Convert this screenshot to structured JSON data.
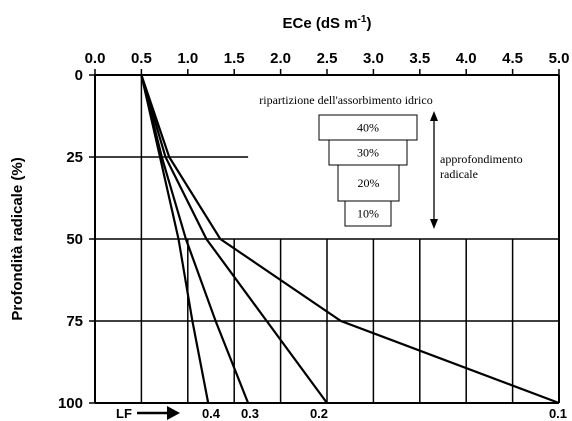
{
  "chart_data": {
    "type": "line",
    "title": "",
    "xlabel_base": "ECe (dS m",
    "xlabel_sup": "-1",
    "xlabel_close": ")",
    "ylabel": "Profondità radicale (%)",
    "xlim": [
      0,
      5
    ],
    "ylim": [
      0,
      100
    ],
    "y_inverted": true,
    "x_axis_position": "top",
    "x_ticks": [
      "0.0",
      "0.5",
      "1.0",
      "1.5",
      "2.0",
      "2.5",
      "3.0",
      "3.5",
      "4.0",
      "4.5",
      "5.0"
    ],
    "y_ticks": [
      "0",
      "25",
      "50",
      "75",
      "100"
    ],
    "series": [
      {
        "name": "0.4",
        "points": [
          [
            0.5,
            0
          ],
          [
            0.7,
            25
          ],
          [
            0.9,
            50
          ],
          [
            1.05,
            75
          ],
          [
            1.22,
            100
          ]
        ]
      },
      {
        "name": "0.3",
        "points": [
          [
            0.5,
            0
          ],
          [
            0.72,
            25
          ],
          [
            0.98,
            50
          ],
          [
            1.3,
            75
          ],
          [
            1.65,
            100
          ]
        ]
      },
      {
        "name": "0.2",
        "points": [
          [
            0.5,
            0
          ],
          [
            0.76,
            25
          ],
          [
            1.2,
            50
          ],
          [
            1.85,
            75
          ],
          [
            2.5,
            100
          ]
        ]
      },
      {
        "name": "0.1",
        "points": [
          [
            0.5,
            0
          ],
          [
            0.8,
            25
          ],
          [
            1.35,
            50
          ],
          [
            2.65,
            75
          ],
          [
            5.0,
            100
          ]
        ]
      }
    ],
    "lf_label": "LF",
    "annotations": {
      "distribution_title": "ripartizione dell'assorbimento idrico",
      "distribution_values": [
        "40%",
        "30%",
        "20%",
        "10%"
      ],
      "deepening_label_1": "approfondimento",
      "deepening_label_2": "radicale"
    }
  }
}
